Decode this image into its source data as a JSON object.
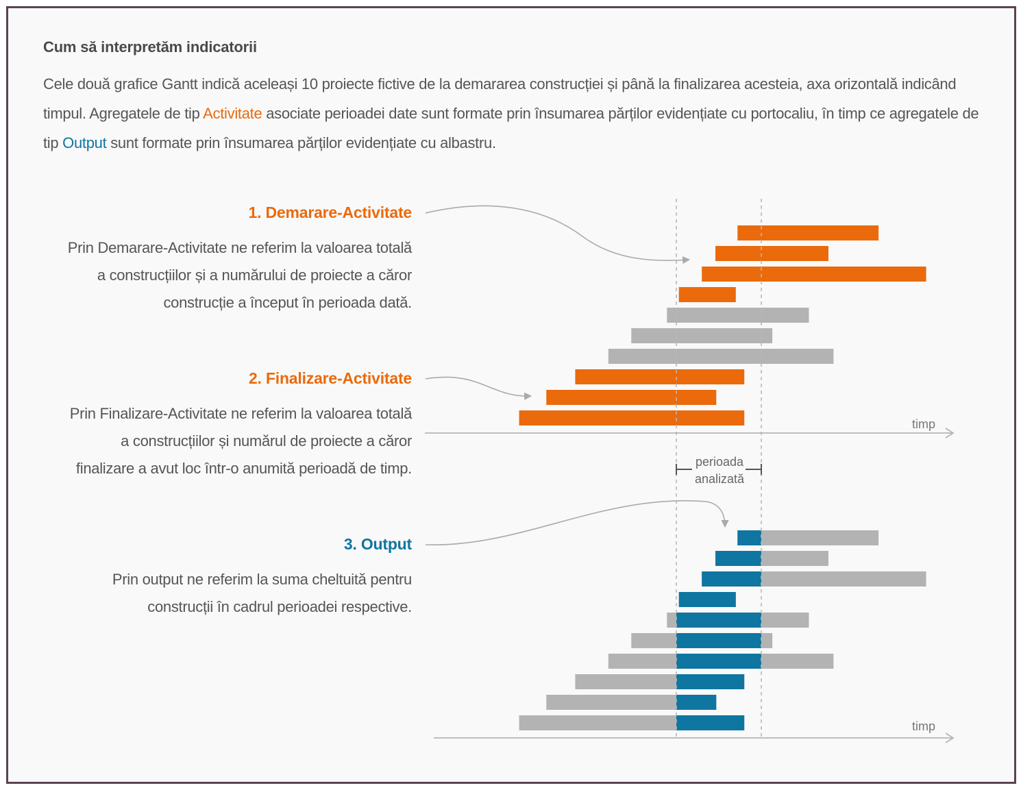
{
  "heading": "Cum să interpretăm indicatorii",
  "intro": {
    "part1": "Cele două grafice Gantt indică aceleași 10 proiecte fictive de la demararea construcției și până la finalizarea acesteia, axa orizontală indicând timpul. Agregatele de tip ",
    "activitate": "Activitate",
    "part2": " asociate perioadei date sunt formate prin însumarea părților evidențiate cu portocaliu, în timp ce agregatele de tip ",
    "output": "Output",
    "part3": " sunt formate prin însumarea părților evidențiate cu albastru."
  },
  "sections": [
    {
      "title": "1. Demarare-Activitate",
      "lines": [
        "Prin Demarare-Activitate ne referim la valoarea totală",
        "a construcțiilor și a numărului de proiecte a căror",
        "construcție a început în perioada dată."
      ]
    },
    {
      "title": "2. Finalizare-Activitate",
      "lines": [
        "Prin Finalizare-Activitate ne referim la valoarea totală",
        "a construcțiilor și numărul de proiecte a căror",
        "finalizare a avut loc într-o anumită perioadă de timp."
      ]
    },
    {
      "title": "3. Output",
      "lines": [
        "Prin output ne referim la suma cheltuită pentru",
        "construcții în cadrul perioadei respective."
      ]
    }
  ],
  "axis_label_top": "timp",
  "axis_label_bottom": "timp",
  "period_label": [
    "perioada",
    "analizată"
  ],
  "colors": {
    "orange": "#ea6a0c",
    "blue": "#0f75a1",
    "gray": "#b3b3b3"
  },
  "chart_data": {
    "type": "gantt",
    "time_unit": "relative",
    "period": [
      0,
      10
    ],
    "projects": [
      {
        "start": 7.2,
        "end": 23.8
      },
      {
        "start": 4.6,
        "end": 17.9
      },
      {
        "start": 3.0,
        "end": 29.4
      },
      {
        "start": 0.3,
        "end": 7.0
      },
      {
        "start": -1.1,
        "end": 15.6
      },
      {
        "start": -5.3,
        "end": 11.3
      },
      {
        "start": -8.0,
        "end": 18.5
      },
      {
        "start": -11.9,
        "end": 8.0
      },
      {
        "start": -15.3,
        "end": 4.7
      },
      {
        "start": -18.5,
        "end": 8.0
      }
    ],
    "legend": []
  }
}
